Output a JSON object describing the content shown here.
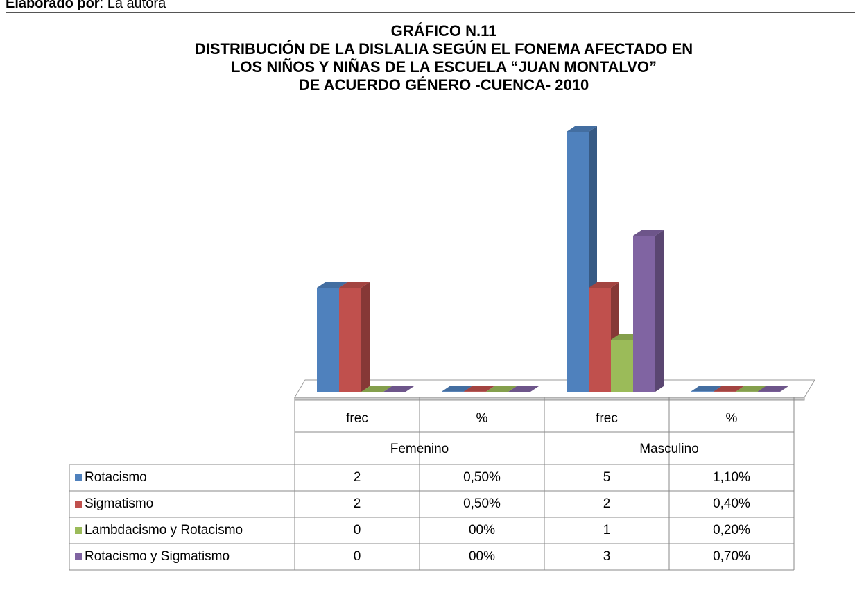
{
  "note": {
    "label": "Elaborado por",
    "text": ": La autora"
  },
  "chart_data": {
    "type": "bar3d",
    "title": [
      "GRÁFICO N.11",
      "DISTRIBUCIÓN DE LA DISLALIA SEGÚN EL FONEMA AFECTADO EN",
      "LOS NIÑOS Y NIÑAS DE LA ESCUELA “JUAN MONTALVO”",
      "DE ACUERDO GÉNERO  -CUENCA-  2010"
    ],
    "categories": [
      "frec",
      "%",
      "frec",
      "%"
    ],
    "groups": [
      "Femenino",
      "Masculino"
    ],
    "ylim": [
      0,
      5
    ],
    "series": [
      {
        "name": "Rotacismo",
        "color": "#4f81bd",
        "values": [
          2,
          0.005,
          5,
          0.011
        ],
        "value_labels": [
          "2",
          "0,50%",
          "5",
          "1,10%"
        ]
      },
      {
        "name": "Sigmatismo",
        "color": "#c0504d",
        "values": [
          2,
          0.005,
          2,
          0.004
        ],
        "value_labels": [
          "2",
          "0,50%",
          "2",
          "0,40%"
        ]
      },
      {
        "name": "Lambdacismo y Rotacismo",
        "color": "#9bbb59",
        "values": [
          0,
          0,
          1,
          0.002
        ],
        "value_labels": [
          "0",
          "00%",
          "1",
          "0,20%"
        ]
      },
      {
        "name": "Rotacismo y Sigmatismo",
        "color": "#8064a2",
        "values": [
          0,
          0,
          3,
          0.007
        ],
        "value_labels": [
          "0",
          "00%",
          "3",
          "0,70%"
        ]
      }
    ]
  }
}
